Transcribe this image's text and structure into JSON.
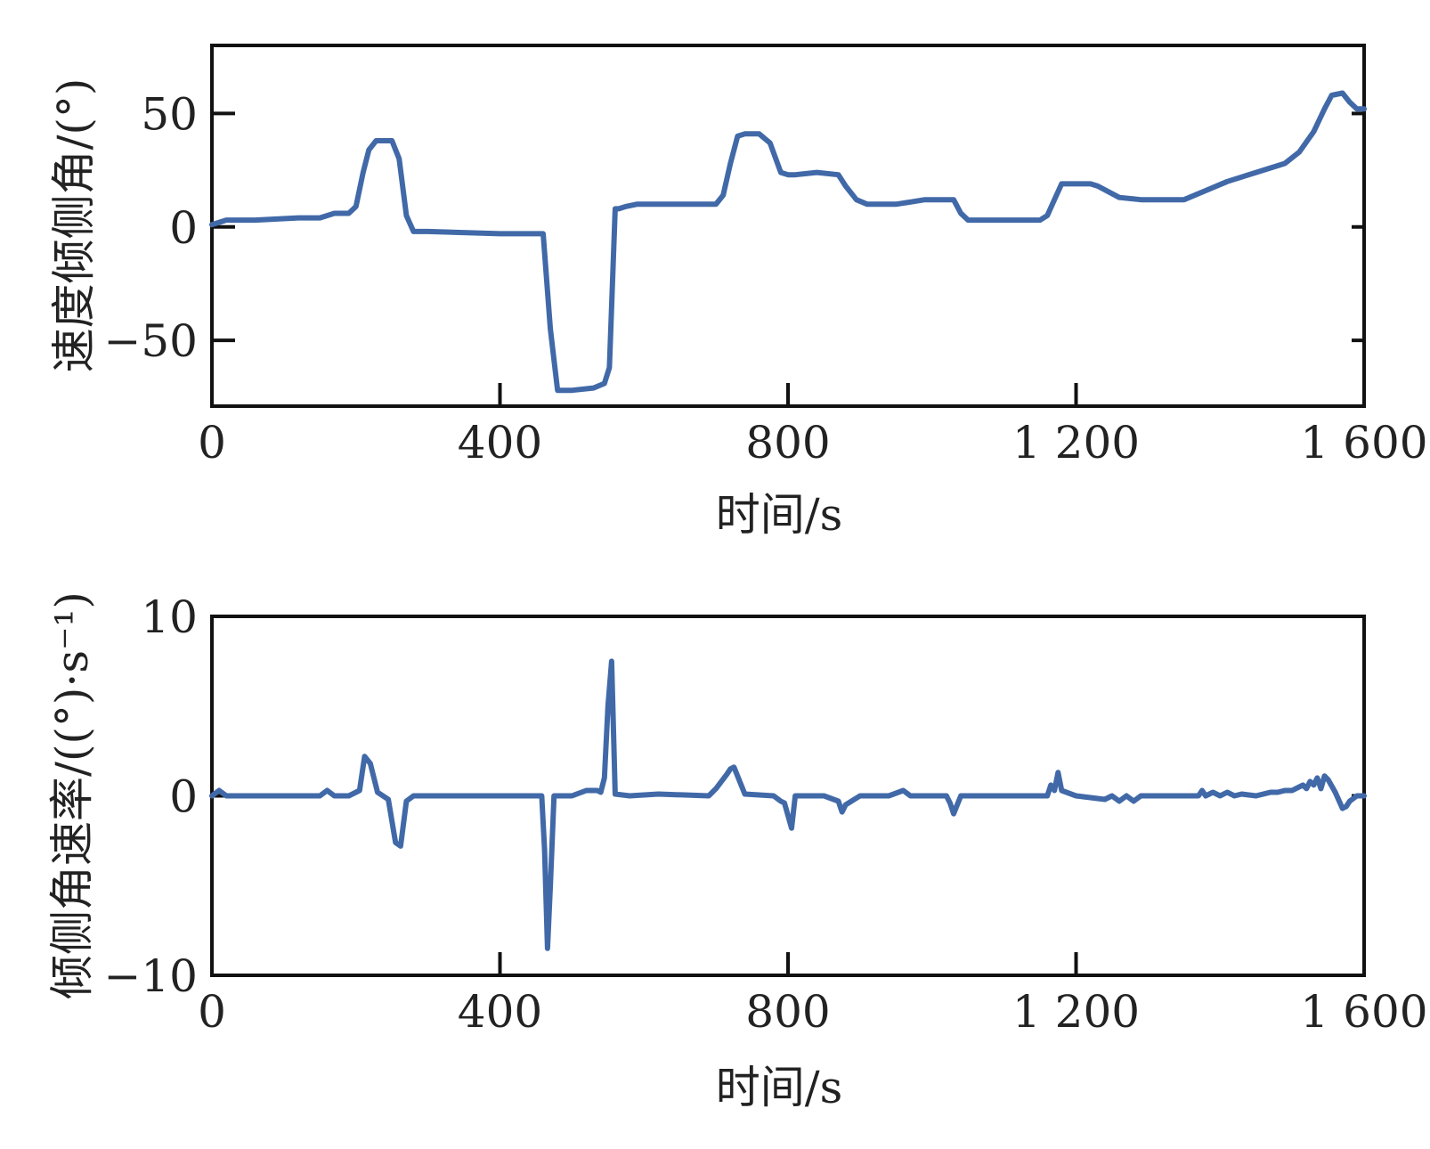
{
  "chart_data": [
    {
      "type": "line",
      "xlabel": "时间/s",
      "ylabel": "速度倾侧角/(°)",
      "xlim": [
        0,
        1600
      ],
      "ylim": [
        -79,
        80
      ],
      "xticks": [
        0,
        400,
        800,
        1200,
        1600
      ],
      "xtick_labels": [
        "0",
        "400",
        "800",
        "1 200",
        "1 600"
      ],
      "yticks": [
        -50,
        0,
        50
      ],
      "ytick_labels": [
        "−50",
        "0",
        "50"
      ],
      "grid": false,
      "color": "#4169a8",
      "series": [
        {
          "x": [
            0,
            20,
            60,
            120,
            150,
            170,
            190,
            200,
            210,
            218,
            228,
            250,
            260,
            270,
            280,
            300,
            400,
            460,
            470,
            480,
            500,
            530,
            545,
            552,
            560,
            565,
            575,
            590,
            610,
            650,
            700,
            710,
            720,
            730,
            740,
            760,
            775,
            790,
            800,
            810,
            840,
            870,
            880,
            895,
            910,
            950,
            970,
            990,
            1010,
            1030,
            1040,
            1050,
            1100,
            1150,
            1160,
            1170,
            1180,
            1200,
            1220,
            1230,
            1260,
            1290,
            1310,
            1350,
            1380,
            1410,
            1450,
            1490,
            1510,
            1530,
            1545,
            1555,
            1570,
            1580,
            1590,
            1600
          ],
          "y": [
            1,
            3,
            3,
            4,
            4,
            6,
            6,
            9,
            24,
            34,
            38,
            38,
            30,
            5,
            -2,
            -2,
            -3,
            -3,
            -45,
            -72,
            -72,
            -71,
            -69,
            -62,
            8,
            8,
            9,
            10,
            10,
            10,
            10,
            14,
            28,
            40,
            41,
            41,
            37,
            24,
            23,
            23,
            24,
            23,
            18,
            12,
            10,
            10,
            11,
            12,
            12,
            12,
            6,
            3,
            3,
            3,
            5,
            12,
            19,
            19,
            19,
            18,
            13,
            12,
            12,
            12,
            16,
            20,
            24,
            28,
            33,
            42,
            52,
            58,
            59,
            55,
            52,
            52
          ]
        }
      ]
    },
    {
      "type": "line",
      "xlabel": "时间/s",
      "ylabel": "倾侧角速率/((°)·s⁻¹)",
      "xlim": [
        0,
        1600
      ],
      "ylim": [
        -10,
        10
      ],
      "xticks": [
        0,
        400,
        800,
        1200,
        1600
      ],
      "xtick_labels": [
        "0",
        "400",
        "800",
        "1 200",
        "1 600"
      ],
      "yticks": [
        -10,
        0,
        10
      ],
      "ytick_labels": [
        "−10",
        "0",
        "10"
      ],
      "grid": false,
      "color": "#4169a8",
      "series": [
        {
          "x": [
            0,
            10,
            20,
            30,
            100,
            150,
            160,
            170,
            190,
            205,
            212,
            220,
            230,
            245,
            255,
            262,
            270,
            280,
            300,
            450,
            458,
            462,
            466,
            470,
            475,
            480,
            500,
            520,
            535,
            540,
            545,
            550,
            555,
            560,
            580,
            620,
            690,
            700,
            715,
            720,
            725,
            740,
            780,
            790,
            795,
            805,
            810,
            850,
            870,
            875,
            880,
            900,
            940,
            960,
            970,
            1000,
            1020,
            1025,
            1030,
            1040,
            1050,
            1100,
            1160,
            1165,
            1170,
            1175,
            1180,
            1200,
            1240,
            1250,
            1260,
            1270,
            1280,
            1290,
            1300,
            1330,
            1370,
            1375,
            1380,
            1390,
            1400,
            1410,
            1420,
            1430,
            1450,
            1470,
            1480,
            1490,
            1500,
            1510,
            1515,
            1520,
            1525,
            1530,
            1535,
            1540,
            1545,
            1550,
            1560,
            1570,
            1575,
            1580,
            1590,
            1600
          ],
          "y": [
            0,
            0.3,
            0,
            0,
            0,
            0,
            0.3,
            0,
            0,
            0.3,
            2.2,
            1.8,
            0.2,
            -0.2,
            -2.6,
            -2.8,
            -0.3,
            0,
            0,
            0,
            0,
            -3,
            -8.5,
            -5,
            0,
            0,
            0,
            0.3,
            0.3,
            0.2,
            1,
            5,
            7.5,
            0.1,
            0,
            0.1,
            0,
            0.4,
            1.2,
            1.5,
            1.6,
            0.1,
            0,
            -0.3,
            -0.4,
            -1.8,
            0,
            0,
            -0.3,
            -0.9,
            -0.5,
            0,
            0,
            0.3,
            0,
            0,
            0,
            -0.4,
            -1,
            0,
            0,
            0,
            0,
            0.6,
            0.3,
            1.3,
            0.3,
            0,
            -0.2,
            0,
            -0.3,
            0,
            -0.3,
            0,
            0,
            0,
            0,
            0.3,
            0,
            0.2,
            0,
            0.2,
            0,
            0.1,
            0,
            0.2,
            0.2,
            0.3,
            0.3,
            0.5,
            0.6,
            0.4,
            0.8,
            0.6,
            1,
            0.4,
            1.1,
            0.9,
            0.2,
            -0.7,
            -0.6,
            -0.3,
            0,
            0
          ]
        }
      ]
    }
  ]
}
